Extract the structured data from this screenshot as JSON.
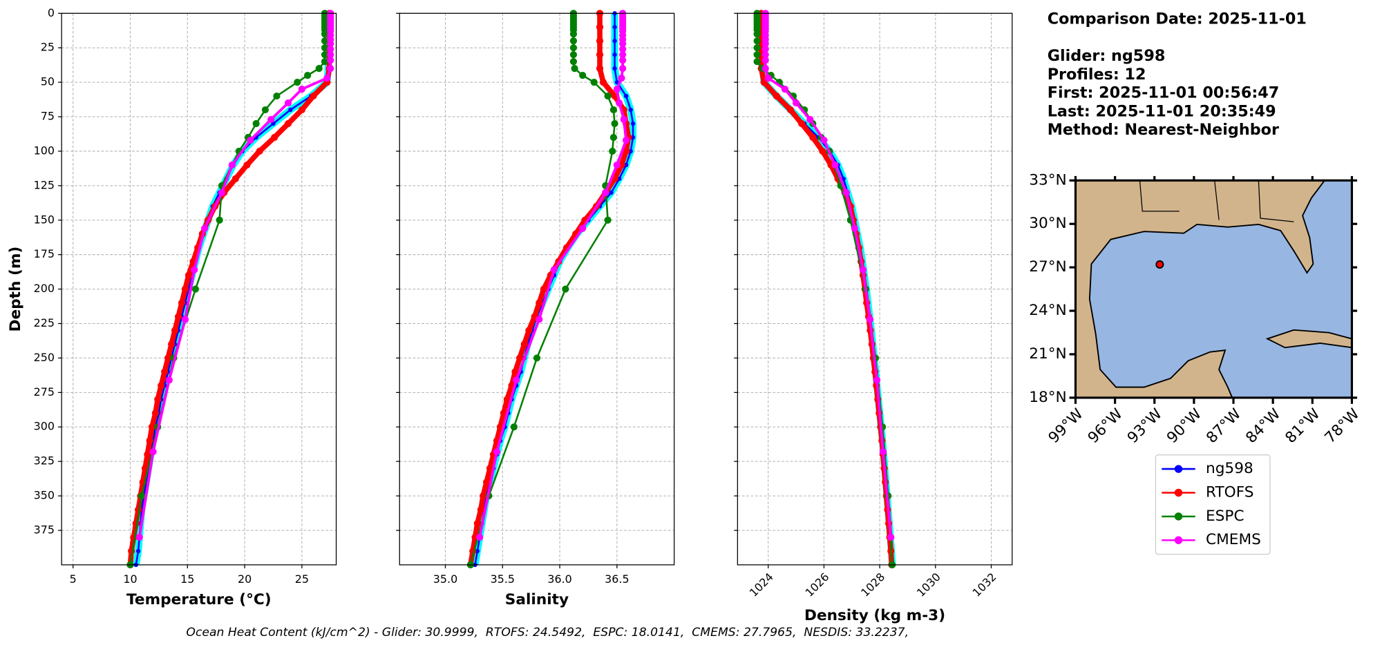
{
  "chart_data": [
    {
      "type": "line",
      "xlabel": "Temperature (°C)",
      "ylabel": "Depth (m)",
      "xlim": [
        4,
        28
      ],
      "ylim": [
        400,
        0
      ],
      "xticks": [
        5,
        10,
        15,
        20,
        25
      ],
      "yticks": [
        0,
        25,
        50,
        75,
        100,
        125,
        150,
        175,
        200,
        225,
        250,
        275,
        300,
        325,
        350,
        375
      ],
      "show_yticklabels": true,
      "grid": true,
      "xtick_rotation": 0,
      "series": [
        {
          "name": "ng598",
          "color": "#0000ff",
          "x": [
            27.3,
            27.3,
            27.3,
            27.3,
            27.3,
            27.2,
            25.8,
            24.0,
            22.5,
            21.0,
            19.8,
            19.0,
            18.4,
            17.8,
            17.2,
            16.8,
            16.4,
            16.0,
            15.7,
            15.4,
            15.1,
            14.8,
            14.5,
            14.2,
            13.9,
            13.6,
            13.3,
            13.0,
            12.7,
            12.5,
            12.2,
            12.0,
            11.8,
            11.6,
            11.4,
            11.2,
            11.0,
            10.9,
            10.8,
            10.7,
            10.5
          ],
          "y": [
            0,
            10,
            20,
            30,
            40,
            50,
            60,
            70,
            80,
            90,
            100,
            110,
            120,
            130,
            140,
            150,
            160,
            170,
            180,
            190,
            200,
            210,
            220,
            230,
            240,
            250,
            260,
            270,
            280,
            290,
            300,
            310,
            320,
            330,
            340,
            350,
            360,
            370,
            380,
            390,
            400
          ]
        },
        {
          "name": "RTOFS",
          "color": "#ff0000",
          "x": [
            27.4,
            27.4,
            27.4,
            27.4,
            27.4,
            27.2,
            26.0,
            25.0,
            23.8,
            22.6,
            21.3,
            20.2,
            19.2,
            18.2,
            17.4,
            16.8,
            16.3,
            15.9,
            15.5,
            15.1,
            14.8,
            14.5,
            14.2,
            13.9,
            13.6,
            13.3,
            13.0,
            12.7,
            12.4,
            12.2,
            11.9,
            11.7,
            11.5,
            11.3,
            11.1,
            10.9,
            10.7,
            10.5,
            10.3,
            10.1,
            10.0
          ],
          "y": [
            0,
            10,
            20,
            30,
            40,
            50,
            60,
            70,
            80,
            90,
            100,
            110,
            120,
            130,
            140,
            150,
            160,
            170,
            180,
            190,
            200,
            210,
            220,
            230,
            240,
            250,
            260,
            270,
            280,
            290,
            300,
            310,
            320,
            330,
            340,
            350,
            360,
            370,
            380,
            390,
            400
          ]
        },
        {
          "name": "ESPC",
          "color": "#008000",
          "x": [
            27.0,
            27.0,
            27.0,
            27.0,
            27.0,
            27.0,
            27.0,
            27.0,
            27.0,
            27.0,
            27.0,
            27.0,
            26.5,
            25.5,
            24.6,
            22.8,
            21.8,
            21.0,
            20.3,
            19.5,
            18.0,
            17.8,
            15.7,
            13.8,
            12.4,
            11.0,
            10.0
          ],
          "y": [
            0,
            2,
            4,
            6,
            8,
            10,
            12,
            15,
            20,
            25,
            30,
            35,
            40,
            45,
            50,
            60,
            70,
            80,
            90,
            100,
            125,
            150,
            200,
            250,
            300,
            350,
            400
          ]
        },
        {
          "name": "CMEMS",
          "color": "#ff00ff",
          "x": [
            27.5,
            27.5,
            27.5,
            27.5,
            27.5,
            27.5,
            27.5,
            27.5,
            27.5,
            27.5,
            27.5,
            27.5,
            27.5,
            27.5,
            27.5,
            27.2,
            25.0,
            23.8,
            22.3,
            20.5,
            18.9,
            18.0,
            16.5,
            15.6,
            14.8,
            13.4,
            12.0,
            10.8
          ],
          "y": [
            0,
            1,
            3,
            5,
            7,
            9,
            11,
            13,
            16,
            19,
            22,
            26,
            30,
            34,
            40,
            47,
            55,
            65,
            77,
            92,
            110,
            130,
            156,
            186,
            222,
            266,
            318,
            380
          ]
        }
      ]
    },
    {
      "type": "line",
      "xlabel": "Salinity",
      "xlim": [
        34.6,
        37.0
      ],
      "ylim": [
        400,
        0
      ],
      "xticks": [
        {
          "value": 35,
          "label": "35.0"
        },
        35.5,
        {
          "value": 36,
          "label": "36.0"
        },
        36.5
      ],
      "yticks": [
        0,
        25,
        50,
        75,
        100,
        125,
        150,
        175,
        200,
        225,
        250,
        275,
        300,
        325,
        350,
        375
      ],
      "show_yticklabels": false,
      "grid": true,
      "xtick_rotation": 0,
      "series": [
        {
          "name": "ng598",
          "color": "#0000ff",
          "x": [
            36.48,
            36.48,
            36.48,
            36.48,
            36.48,
            36.5,
            36.58,
            36.62,
            36.64,
            36.64,
            36.62,
            36.58,
            36.52,
            36.45,
            36.35,
            36.25,
            36.15,
            36.07,
            36.0,
            35.95,
            35.9,
            35.85,
            35.8,
            35.76,
            35.72,
            35.69,
            35.66,
            35.62,
            35.58,
            35.55,
            35.52,
            35.48,
            35.45,
            35.42,
            35.39,
            35.36,
            35.34,
            35.32,
            35.3,
            35.28,
            35.26
          ],
          "y": [
            0,
            10,
            20,
            30,
            40,
            50,
            60,
            70,
            80,
            90,
            100,
            110,
            120,
            130,
            140,
            150,
            160,
            170,
            180,
            190,
            200,
            210,
            220,
            230,
            240,
            250,
            260,
            270,
            280,
            290,
            300,
            310,
            320,
            330,
            340,
            350,
            360,
            370,
            380,
            390,
            400
          ]
        },
        {
          "name": "RTOFS",
          "color": "#ff0000",
          "x": [
            36.35,
            36.35,
            36.35,
            36.35,
            36.35,
            36.38,
            36.48,
            36.56,
            36.58,
            36.6,
            36.58,
            36.54,
            36.48,
            36.4,
            36.32,
            36.22,
            36.14,
            36.06,
            35.99,
            35.92,
            35.86,
            35.82,
            35.78,
            35.73,
            35.69,
            35.65,
            35.61,
            35.58,
            35.54,
            35.51,
            35.48,
            35.45,
            35.42,
            35.39,
            35.36,
            35.33,
            35.31,
            35.28,
            35.26,
            35.24,
            35.22
          ],
          "y": [
            0,
            10,
            20,
            30,
            40,
            50,
            60,
            70,
            80,
            90,
            100,
            110,
            120,
            130,
            140,
            150,
            160,
            170,
            180,
            190,
            200,
            210,
            220,
            230,
            240,
            250,
            260,
            270,
            280,
            290,
            300,
            310,
            320,
            330,
            340,
            350,
            360,
            370,
            380,
            390,
            400
          ]
        },
        {
          "name": "ESPC",
          "color": "#008000",
          "x": [
            36.12,
            36.12,
            36.12,
            36.12,
            36.12,
            36.12,
            36.12,
            36.12,
            36.12,
            36.12,
            36.12,
            36.12,
            36.13,
            36.2,
            36.3,
            36.42,
            36.47,
            36.48,
            36.47,
            36.46,
            36.4,
            36.42,
            36.05,
            35.8,
            35.6,
            35.38,
            35.22
          ],
          "y": [
            0,
            2,
            4,
            6,
            8,
            10,
            12,
            15,
            20,
            25,
            30,
            35,
            40,
            45,
            50,
            60,
            70,
            80,
            90,
            100,
            125,
            150,
            200,
            250,
            300,
            350,
            400
          ]
        },
        {
          "name": "CMEMS",
          "color": "#ff00ff",
          "x": [
            36.55,
            36.55,
            36.55,
            36.55,
            36.55,
            36.55,
            36.55,
            36.55,
            36.55,
            36.55,
            36.55,
            36.55,
            36.55,
            36.55,
            36.55,
            36.54,
            36.5,
            36.52,
            36.56,
            36.58,
            36.5,
            36.4,
            36.2,
            35.95,
            35.82,
            35.62,
            35.45,
            35.3
          ],
          "y": [
            0,
            1,
            3,
            5,
            7,
            9,
            11,
            13,
            16,
            19,
            22,
            26,
            30,
            34,
            40,
            47,
            55,
            65,
            77,
            92,
            110,
            130,
            156,
            186,
            222,
            266,
            318,
            380
          ]
        }
      ]
    },
    {
      "type": "line",
      "xlabel": "Density (kg m-3)",
      "xlim": [
        1022.9,
        1032.75
      ],
      "ylim": [
        400,
        0
      ],
      "xticks": [
        1024,
        1026,
        1028,
        1030,
        1032
      ],
      "yticks": [
        0,
        25,
        50,
        75,
        100,
        125,
        150,
        175,
        200,
        225,
        250,
        275,
        300,
        325,
        350,
        375
      ],
      "show_yticklabels": false,
      "grid": true,
      "xtick_rotation": 45,
      "series": [
        {
          "name": "ng598",
          "color": "#0000ff",
          "x": [
            1023.8,
            1023.8,
            1023.8,
            1023.8,
            1023.8,
            1023.85,
            1024.3,
            1024.8,
            1025.3,
            1025.8,
            1026.2,
            1026.5,
            1026.7,
            1026.85,
            1027.0,
            1027.1,
            1027.2,
            1027.3,
            1027.38,
            1027.45,
            1027.52,
            1027.58,
            1027.64,
            1027.7,
            1027.75,
            1027.8,
            1027.86,
            1027.9,
            1027.95,
            1028.0,
            1028.05,
            1028.1,
            1028.14,
            1028.18,
            1028.22,
            1028.26,
            1028.3,
            1028.34,
            1028.38,
            1028.42,
            1028.45
          ],
          "y": [
            0,
            10,
            20,
            30,
            40,
            50,
            60,
            70,
            80,
            90,
            100,
            110,
            120,
            130,
            140,
            150,
            160,
            170,
            180,
            190,
            200,
            210,
            220,
            230,
            240,
            250,
            260,
            270,
            280,
            290,
            300,
            310,
            320,
            330,
            340,
            350,
            360,
            370,
            380,
            390,
            400
          ]
        },
        {
          "name": "RTOFS",
          "color": "#ff0000",
          "x": [
            1023.75,
            1023.75,
            1023.75,
            1023.75,
            1023.75,
            1023.85,
            1024.3,
            1024.8,
            1025.2,
            1025.6,
            1025.95,
            1026.25,
            1026.5,
            1026.75,
            1026.95,
            1027.05,
            1027.15,
            1027.25,
            1027.33,
            1027.4,
            1027.47,
            1027.53,
            1027.6,
            1027.66,
            1027.72,
            1027.77,
            1027.83,
            1027.88,
            1027.93,
            1027.98,
            1028.03,
            1028.08,
            1028.12,
            1028.16,
            1028.2,
            1028.24,
            1028.28,
            1028.32,
            1028.36,
            1028.4,
            1028.43
          ],
          "y": [
            0,
            10,
            20,
            30,
            40,
            50,
            60,
            70,
            80,
            90,
            100,
            110,
            120,
            130,
            140,
            150,
            160,
            170,
            180,
            190,
            200,
            210,
            220,
            230,
            240,
            250,
            260,
            270,
            280,
            290,
            300,
            310,
            320,
            330,
            340,
            350,
            360,
            370,
            380,
            390,
            400
          ]
        },
        {
          "name": "ESPC",
          "color": "#008000",
          "x": [
            1023.6,
            1023.6,
            1023.6,
            1023.6,
            1023.6,
            1023.6,
            1023.6,
            1023.6,
            1023.6,
            1023.6,
            1023.6,
            1023.6,
            1023.8,
            1024.1,
            1024.4,
            1024.9,
            1025.3,
            1025.6,
            1025.9,
            1026.2,
            1026.6,
            1026.95,
            1027.5,
            1027.85,
            1028.1,
            1028.3,
            1028.45
          ],
          "y": [
            0,
            2,
            4,
            6,
            8,
            10,
            12,
            15,
            20,
            25,
            30,
            35,
            40,
            45,
            50,
            60,
            70,
            80,
            90,
            100,
            125,
            150,
            200,
            250,
            300,
            350,
            400
          ]
        },
        {
          "name": "CMEMS",
          "color": "#ff00ff",
          "x": [
            1023.9,
            1023.9,
            1023.9,
            1023.9,
            1023.9,
            1023.9,
            1023.9,
            1023.9,
            1023.9,
            1023.9,
            1023.9,
            1023.9,
            1023.9,
            1023.9,
            1023.9,
            1024.0,
            1024.6,
            1025.0,
            1025.5,
            1026.0,
            1026.4,
            1026.8,
            1027.1,
            1027.4,
            1027.65,
            1027.9,
            1028.12,
            1028.4
          ],
          "y": [
            0,
            1,
            3,
            5,
            7,
            9,
            11,
            13,
            16,
            19,
            22,
            26,
            30,
            34,
            40,
            47,
            55,
            65,
            77,
            92,
            110,
            130,
            156,
            186,
            222,
            266,
            318,
            380
          ]
        }
      ]
    },
    {
      "type": "map",
      "xlim": [
        -99,
        -78
      ],
      "ylim": [
        18,
        33
      ],
      "xtick_rotation": 45,
      "xticks": [
        {
          "value": -99,
          "label": "99°W"
        },
        {
          "value": -96,
          "label": "96°W"
        },
        {
          "value": -93,
          "label": "93°W"
        },
        {
          "value": -90,
          "label": "90°W"
        },
        {
          "value": -87,
          "label": "87°W"
        },
        {
          "value": -84,
          "label": "84°W"
        },
        {
          "value": -81,
          "label": "81°W"
        },
        {
          "value": -78,
          "label": "78°W"
        }
      ],
      "yticks": [
        {
          "value": 18,
          "label": "18°N"
        },
        {
          "value": 21,
          "label": "21°N"
        },
        {
          "value": 24,
          "label": "24°N"
        },
        {
          "value": 27,
          "label": "27°N"
        },
        {
          "value": 30,
          "label": "30°N"
        },
        {
          "value": 33,
          "label": "33°N"
        }
      ],
      "points": {
        "x": [
          -92.6
        ],
        "y": [
          27.2
        ],
        "color": "#ff0000"
      }
    }
  ],
  "info": {
    "lines": [
      "Comparison Date: 2025-11-01",
      "Glider: ng598",
      "Profiles: 12",
      "First: 2025-11-01 00:56:47",
      "Last: 2025-11-01 20:35:49",
      "Method: Nearest-Neighbor"
    ]
  },
  "footer": "Ocean Heat Content (kJ/cm^2) - Glider: 30.9999,  RTOFS: 24.5492,  ESPC: 18.0141,  CMEMS: 27.7965,  NESDIS: 33.2237,"
}
